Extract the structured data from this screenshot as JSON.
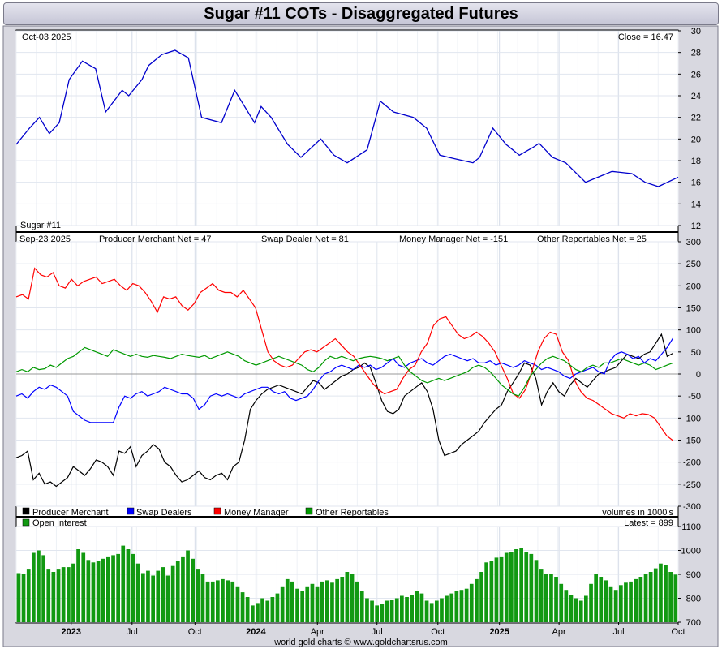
{
  "title": "Sugar #11 COTs - Disaggregated Futures",
  "footer": "world gold charts © www.goldchartsrus.com",
  "colors": {
    "price": "#0000cc",
    "producer": "#000000",
    "swap": "#0000ff",
    "money": "#ff0000",
    "other": "#009900",
    "oi": "#119911"
  },
  "chart_data": [
    {
      "type": "line",
      "id": "price-panel",
      "date_label": "Oct-03  2025",
      "close_label": "Close = 16.47",
      "symbol_label": "Sugar #11",
      "ylim": [
        12,
        30
      ],
      "yticks": [
        12,
        14,
        16,
        18,
        20,
        22,
        24,
        26,
        28,
        30
      ],
      "series": [
        {
          "name": "Sugar #11 price",
          "x": [
            0,
            0.02,
            0.035,
            0.05,
            0.065,
            0.08,
            0.1,
            0.12,
            0.135,
            0.16,
            0.17,
            0.19,
            0.2,
            0.22,
            0.24,
            0.26,
            0.28,
            0.31,
            0.33,
            0.36,
            0.37,
            0.385,
            0.41,
            0.43,
            0.46,
            0.48,
            0.5,
            0.53,
            0.55,
            0.57,
            0.6,
            0.62,
            0.64,
            0.66,
            0.69,
            0.7,
            0.72,
            0.74,
            0.76,
            0.78,
            0.79,
            0.81,
            0.83,
            0.86,
            0.88,
            0.9,
            0.93,
            0.95,
            0.97,
            1.0
          ],
          "y": [
            19.5,
            21,
            22,
            20.5,
            21.5,
            25.5,
            27.2,
            26.5,
            22.5,
            24.5,
            24,
            25.5,
            26.8,
            27.8,
            28.2,
            27.5,
            22,
            21.5,
            24.5,
            21.5,
            23,
            22,
            19.5,
            18.3,
            20,
            18.5,
            17.8,
            19,
            23.5,
            22.5,
            22,
            21,
            18.5,
            18.2,
            17.8,
            18.3,
            21,
            19.5,
            18.5,
            19.2,
            19.6,
            18.3,
            17.8,
            16,
            16.5,
            17,
            16.8,
            16,
            15.6,
            16.47
          ]
        }
      ]
    },
    {
      "type": "line",
      "id": "cot-panel",
      "date_label": "Sep-23  2025",
      "ylim": [
        -300,
        300
      ],
      "yticks": [
        -300,
        -250,
        -200,
        -150,
        -100,
        -50,
        0,
        50,
        100,
        150,
        200,
        250,
        300
      ],
      "xunit": "week",
      "series": [
        {
          "name": "Producer Merchant",
          "net_label": "Producer Merchant Net = 47",
          "color_key": "producer",
          "y": [
            -190,
            -185,
            -175,
            -240,
            -225,
            -250,
            -245,
            -255,
            -245,
            -235,
            -210,
            -220,
            -230,
            -215,
            -195,
            -200,
            -210,
            -230,
            -175,
            -180,
            -165,
            -210,
            -185,
            -175,
            -160,
            -170,
            -200,
            -210,
            -230,
            -245,
            -240,
            -230,
            -220,
            -235,
            -240,
            -230,
            -225,
            -240,
            -210,
            -200,
            -150,
            -80,
            -60,
            -45,
            -35,
            -30,
            -25,
            -30,
            -35,
            -40,
            -45,
            -30,
            -15,
            -20,
            -35,
            -25,
            -15,
            -5,
            0,
            10,
            15,
            25,
            15,
            -20,
            -60,
            -85,
            -90,
            -80,
            -50,
            -40,
            -30,
            -20,
            -40,
            -80,
            -150,
            -185,
            -180,
            -175,
            -160,
            -150,
            -140,
            -130,
            -110,
            -95,
            -80,
            -70,
            -40,
            -20,
            0,
            25,
            20,
            -10,
            -70,
            -40,
            -20,
            -40,
            -50,
            -25,
            -10,
            -20,
            -30,
            -15,
            0,
            5,
            10,
            15,
            30,
            45,
            40,
            35,
            45,
            50,
            70,
            90,
            40,
            47
          ]
        },
        {
          "name": "Swap Dealers",
          "net_label": "Swap Dealer Net = 81",
          "color_key": "swap",
          "y": [
            -50,
            -45,
            -55,
            -40,
            -30,
            -35,
            -25,
            -30,
            -40,
            -50,
            -85,
            -95,
            -105,
            -110,
            -110,
            -110,
            -110,
            -110,
            -75,
            -50,
            -55,
            -45,
            -40,
            -50,
            -45,
            -40,
            -30,
            -35,
            -40,
            -45,
            -45,
            -55,
            -80,
            -70,
            -50,
            -45,
            -50,
            -45,
            -50,
            -55,
            -45,
            -40,
            -35,
            -30,
            -30,
            -40,
            -45,
            -40,
            -55,
            -60,
            -55,
            -50,
            -35,
            -15,
            0,
            5,
            15,
            20,
            15,
            10,
            20,
            15,
            20,
            10,
            15,
            25,
            35,
            20,
            15,
            25,
            30,
            35,
            25,
            20,
            30,
            40,
            45,
            40,
            35,
            30,
            35,
            25,
            25,
            30,
            20,
            25,
            20,
            15,
            20,
            30,
            25,
            20,
            10,
            15,
            10,
            5,
            -5,
            -10,
            0,
            5,
            10,
            15,
            5,
            0,
            30,
            45,
            50,
            45,
            35,
            40,
            25,
            35,
            30,
            45,
            60,
            81
          ]
        },
        {
          "name": "Money Manager",
          "net_label": "Money Manager Net = -151",
          "color_key": "money",
          "y": [
            175,
            180,
            170,
            240,
            225,
            220,
            230,
            200,
            195,
            215,
            200,
            210,
            215,
            220,
            205,
            210,
            215,
            200,
            190,
            205,
            200,
            185,
            165,
            140,
            175,
            170,
            175,
            155,
            145,
            160,
            185,
            195,
            205,
            190,
            185,
            185,
            175,
            190,
            170,
            150,
            100,
            50,
            30,
            20,
            15,
            20,
            35,
            50,
            55,
            50,
            60,
            70,
            80,
            65,
            50,
            40,
            20,
            0,
            -20,
            -35,
            -45,
            -40,
            -35,
            -10,
            10,
            20,
            50,
            70,
            110,
            125,
            130,
            110,
            90,
            80,
            85,
            95,
            85,
            70,
            50,
            20,
            -10,
            -45,
            -55,
            -35,
            5,
            50,
            80,
            95,
            90,
            50,
            30,
            -15,
            -40,
            -55,
            -60,
            -70,
            -80,
            -90,
            -95,
            -100,
            -90,
            -95,
            -90,
            -92,
            -100,
            -120,
            -140,
            -151
          ]
        },
        {
          "name": "Other Reportables",
          "net_label": "Other Reportables Net = 25",
          "color_key": "other",
          "y": [
            5,
            10,
            5,
            15,
            10,
            12,
            20,
            15,
            25,
            35,
            40,
            50,
            60,
            55,
            50,
            45,
            40,
            55,
            50,
            45,
            40,
            45,
            40,
            38,
            42,
            40,
            38,
            35,
            40,
            45,
            42,
            40,
            38,
            42,
            35,
            40,
            45,
            50,
            45,
            40,
            30,
            25,
            20,
            25,
            30,
            35,
            40,
            35,
            30,
            25,
            20,
            10,
            5,
            15,
            30,
            40,
            35,
            40,
            35,
            30,
            35,
            38,
            40,
            38,
            35,
            30,
            35,
            40,
            20,
            5,
            -5,
            -15,
            -20,
            -15,
            -10,
            -15,
            -10,
            -5,
            0,
            5,
            15,
            20,
            15,
            5,
            -10,
            -25,
            -35,
            -45,
            -50,
            -30,
            -5,
            10,
            25,
            35,
            40,
            35,
            30,
            20,
            10,
            5,
            15,
            20,
            15,
            25,
            25,
            30,
            35,
            30,
            25,
            20,
            25,
            20,
            10,
            15,
            20,
            25
          ]
        }
      ],
      "legend": [
        "Producer Merchant",
        "Swap Dealers",
        "Money Manager",
        "Other Reportables"
      ],
      "volumes_label": "volumes in 1000's"
    },
    {
      "type": "bar",
      "id": "oi-panel",
      "series_name": "Open Interest",
      "latest_label": "Latest = 899",
      "ylim": [
        700,
        1100
      ],
      "yticks": [
        700,
        800,
        900,
        1000,
        1100
      ],
      "values": [
        905,
        900,
        920,
        990,
        1000,
        980,
        920,
        910,
        920,
        930,
        930,
        945,
        1005,
        990,
        960,
        950,
        955,
        965,
        975,
        980,
        985,
        1020,
        1005,
        985,
        945,
        905,
        915,
        895,
        915,
        930,
        895,
        935,
        955,
        975,
        1000,
        965,
        920,
        900,
        870,
        870,
        875,
        880,
        875,
        870,
        850,
        825,
        805,
        770,
        780,
        800,
        790,
        805,
        820,
        850,
        880,
        870,
        840,
        830,
        850,
        860,
        850,
        870,
        875,
        865,
        880,
        890,
        910,
        900,
        870,
        830,
        800,
        790,
        770,
        775,
        790,
        795,
        800,
        810,
        805,
        815,
        830,
        820,
        790,
        780,
        790,
        800,
        810,
        820,
        830,
        835,
        840,
        860,
        880,
        910,
        950,
        955,
        970,
        975,
        990,
        995,
        1005,
        1010,
        995,
        985,
        960,
        920,
        900,
        900,
        890,
        860,
        835,
        815,
        800,
        790,
        810,
        860,
        900,
        890,
        875,
        850,
        835,
        855,
        865,
        870,
        880,
        890,
        900,
        910,
        925,
        945,
        940,
        910,
        899
      ],
      "xtick_labels": [
        "2023",
        "Jul",
        "Oct",
        "2024",
        "Apr",
        "Jul",
        "Oct",
        "2025",
        "Apr",
        "Jul",
        "Oct"
      ],
      "xtick_positions": [
        0.083,
        0.175,
        0.27,
        0.362,
        0.455,
        0.545,
        0.637,
        0.73,
        0.82,
        0.91,
        1.0
      ]
    }
  ]
}
